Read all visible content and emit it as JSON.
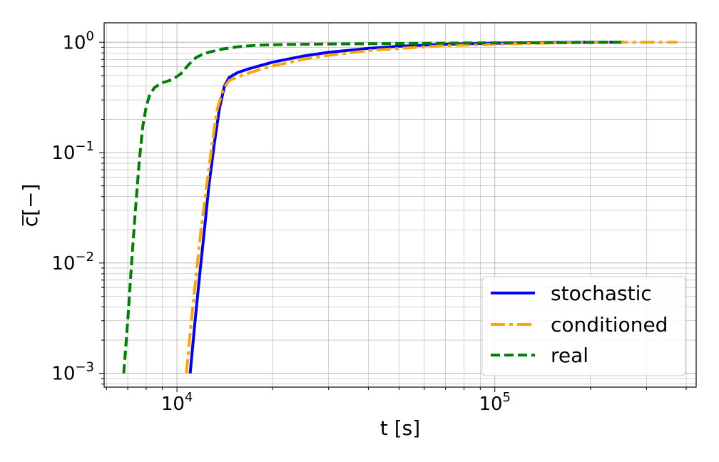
{
  "chart_data": {
    "type": "line",
    "xlabel": "t [s]",
    "ylabel": "c̅[−]",
    "xscale": "log",
    "yscale": "log",
    "xlim": [
      5900,
      430000
    ],
    "ylim": [
      0.00075,
      1.5
    ],
    "grid": true,
    "legend_position": "bottom-right",
    "x_ticks": [
      {
        "value": 10000,
        "base": "10",
        "exp": "4"
      },
      {
        "value": 100000,
        "base": "10",
        "exp": "5"
      }
    ],
    "y_ticks": [
      {
        "value": 1,
        "base": "10",
        "exp": "0"
      },
      {
        "value": 0.1,
        "base": "10",
        "exp": "−1"
      },
      {
        "value": 0.01,
        "base": "10",
        "exp": "−2"
      },
      {
        "value": 0.001,
        "base": "10",
        "exp": "−3"
      }
    ],
    "series": [
      {
        "name": "stochastic",
        "color": "#0000ff",
        "dash": "solid",
        "points": [
          [
            11000,
            0.001
          ],
          [
            11400,
            0.003
          ],
          [
            11800,
            0.008
          ],
          [
            12200,
            0.02
          ],
          [
            12600,
            0.05
          ],
          [
            13100,
            0.12
          ],
          [
            13600,
            0.25
          ],
          [
            14100,
            0.4
          ],
          [
            14600,
            0.48
          ],
          [
            15500,
            0.53
          ],
          [
            17000,
            0.58
          ],
          [
            20000,
            0.66
          ],
          [
            25000,
            0.75
          ],
          [
            30000,
            0.81
          ],
          [
            40000,
            0.88
          ],
          [
            50000,
            0.92
          ],
          [
            70000,
            0.96
          ],
          [
            100000,
            0.98
          ],
          [
            150000,
            0.995
          ],
          [
            200000,
            1.0
          ],
          [
            255000,
            1.0
          ]
        ]
      },
      {
        "name": "conditioned",
        "color": "#ffa500",
        "dash": "dashdot",
        "points": [
          [
            10700,
            0.001
          ],
          [
            11100,
            0.003
          ],
          [
            11500,
            0.008
          ],
          [
            11900,
            0.02
          ],
          [
            12400,
            0.05
          ],
          [
            12900,
            0.12
          ],
          [
            13400,
            0.25
          ],
          [
            14000,
            0.38
          ],
          [
            14600,
            0.45
          ],
          [
            16000,
            0.5
          ],
          [
            18000,
            0.56
          ],
          [
            20000,
            0.61
          ],
          [
            25000,
            0.7
          ],
          [
            30000,
            0.76
          ],
          [
            40000,
            0.84
          ],
          [
            50000,
            0.88
          ],
          [
            70000,
            0.93
          ],
          [
            100000,
            0.96
          ],
          [
            150000,
            0.985
          ],
          [
            200000,
            0.995
          ],
          [
            250000,
            1.0
          ],
          [
            375000,
            1.0
          ]
        ]
      },
      {
        "name": "real",
        "color": "#008000",
        "dash": "dashed",
        "points": [
          [
            6800,
            0.001
          ],
          [
            7000,
            0.003
          ],
          [
            7200,
            0.01
          ],
          [
            7400,
            0.03
          ],
          [
            7600,
            0.08
          ],
          [
            7800,
            0.17
          ],
          [
            8000,
            0.26
          ],
          [
            8200,
            0.33
          ],
          [
            8500,
            0.39
          ],
          [
            9000,
            0.43
          ],
          [
            9700,
            0.46
          ],
          [
            10300,
            0.52
          ],
          [
            10900,
            0.63
          ],
          [
            11500,
            0.73
          ],
          [
            12200,
            0.79
          ],
          [
            13000,
            0.83
          ],
          [
            14000,
            0.87
          ],
          [
            15500,
            0.91
          ],
          [
            18000,
            0.94
          ],
          [
            22000,
            0.955
          ],
          [
            30000,
            0.965
          ],
          [
            50000,
            0.975
          ],
          [
            80000,
            0.985
          ],
          [
            120000,
            0.99
          ],
          [
            200000,
            0.995
          ],
          [
            250000,
            1.0
          ]
        ]
      }
    ]
  }
}
